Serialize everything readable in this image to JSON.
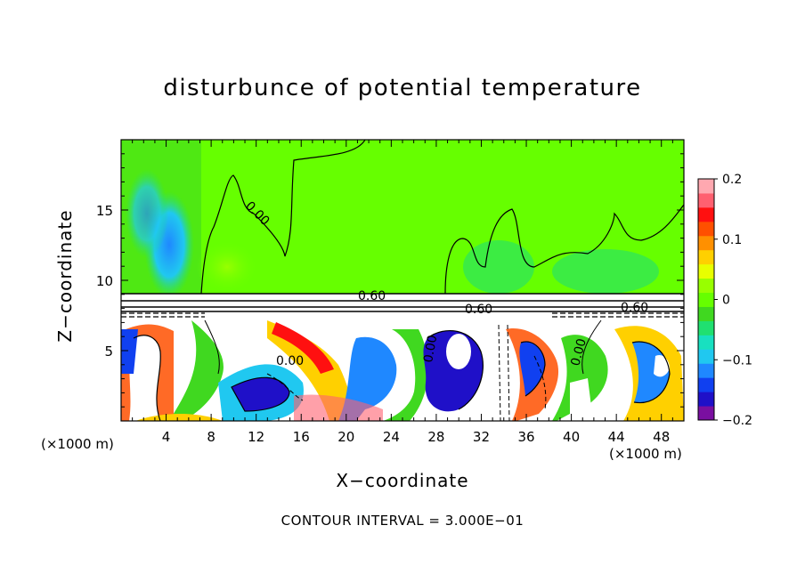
{
  "chart_data": {
    "type": "heatmap",
    "title": "disturbunce of potential temperature",
    "xlabel": "X−coordinate",
    "ylabel": "Z−coordinate",
    "x_unit": "(×1000 m)",
    "x_unit_right": "(×1000 m)",
    "xlim": [
      0,
      50
    ],
    "ylim": [
      0,
      20
    ],
    "xticks": [
      4,
      8,
      12,
      16,
      20,
      24,
      28,
      32,
      36,
      40,
      44,
      48
    ],
    "yticks": [
      5,
      10,
      15
    ],
    "colorbar": {
      "range": [
        -0.2,
        0.2
      ],
      "ticks": [
        -0.2,
        -0.1,
        0,
        0.1,
        0.2
      ],
      "tick_labels": [
        "−0.2",
        "−0.1",
        "0",
        "0.1",
        "0.2"
      ],
      "colors": [
        "#7a0fa0",
        "#1f10c8",
        "#1040f0",
        "#1f88ff",
        "#20c8f0",
        "#18e0c0",
        "#20e070",
        "#40d820",
        "#66ff00",
        "#98ff00",
        "#e8ff00",
        "#ffd000",
        "#ff9000",
        "#ff5000",
        "#ff1010",
        "#ff6070",
        "#ffa8b0"
      ]
    },
    "contour_labels": [
      "0.00",
      "0.60",
      "0.60",
      "0.60",
      "0.00",
      "0.00",
      "0.00"
    ],
    "contour_interval_text": "CONTOUR INTERVAL = 3.000E−01"
  }
}
